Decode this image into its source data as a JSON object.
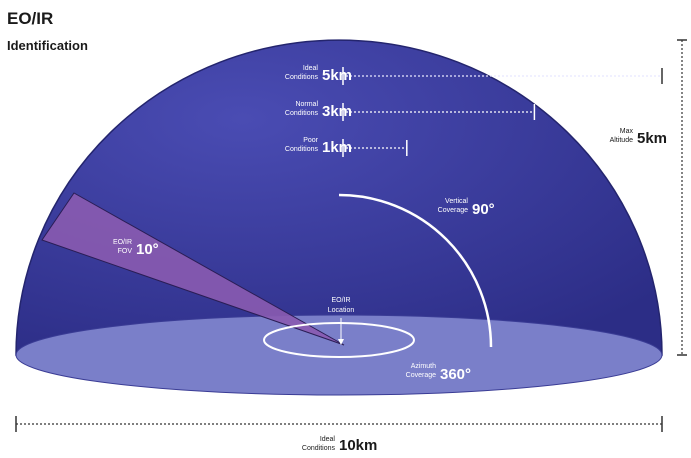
{
  "title": {
    "line1": "EO/IR",
    "line2": "Identification"
  },
  "ranges": [
    {
      "label_line1": "Ideal",
      "label_line2": "Conditions",
      "value": "5km",
      "fraction": 1.0
    },
    {
      "label_line1": "Normal",
      "label_line2": "Conditions",
      "value": "3km",
      "fraction": 0.6
    },
    {
      "label_line1": "Poor",
      "label_line2": "Conditions",
      "value": "1km",
      "fraction": 0.2
    }
  ],
  "max_altitude": {
    "label_line1": "Max",
    "label_line2": "Altitude",
    "value": "5km"
  },
  "vertical_coverage": {
    "label_line1": "Vertical",
    "label_line2": "Coverage",
    "value": "90°"
  },
  "fov": {
    "label_line1": "EO/IR",
    "label_line2": "FOV",
    "value": "10°"
  },
  "location": {
    "label_line1": "EO/IR",
    "label_line2": "Location"
  },
  "azimuth_coverage": {
    "label_line1": "Azimuth",
    "label_line2": "Coverage",
    "value": "360°"
  },
  "ground_range": {
    "label_line1": "Ideal",
    "label_line2": "Conditions",
    "value": "10km"
  },
  "colors": {
    "dome": "#3b3d9e",
    "dome_edge": "#24256e",
    "base": "#7a7fc9",
    "fov": "#7b4fa3",
    "line": "#ffffff",
    "dim": "#333333"
  }
}
